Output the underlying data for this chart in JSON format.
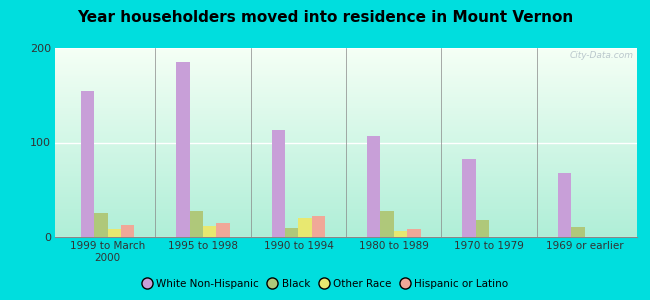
{
  "title": "Year householders moved into residence in Mount Vernon",
  "categories": [
    "1999 to March\n2000",
    "1995 to 1998",
    "1990 to 1994",
    "1980 to 1989",
    "1970 to 1979",
    "1969 or earlier"
  ],
  "series": {
    "White Non-Hispanic": [
      155,
      185,
      113,
      107,
      83,
      68
    ],
    "Black": [
      25,
      27,
      10,
      27,
      18,
      11
    ],
    "Other Race": [
      8,
      12,
      20,
      6,
      0,
      0
    ],
    "Hispanic or Latino": [
      13,
      15,
      22,
      8,
      0,
      0
    ]
  },
  "colors": {
    "White Non-Hispanic": "#c89fd8",
    "Black": "#afc87a",
    "Other Race": "#e8e870",
    "Hispanic or Latino": "#f0a898"
  },
  "ylim": [
    0,
    200
  ],
  "yticks": [
    0,
    100,
    200
  ],
  "background_outer": "#00dede",
  "bar_width": 0.14,
  "watermark": "City-Data.com"
}
